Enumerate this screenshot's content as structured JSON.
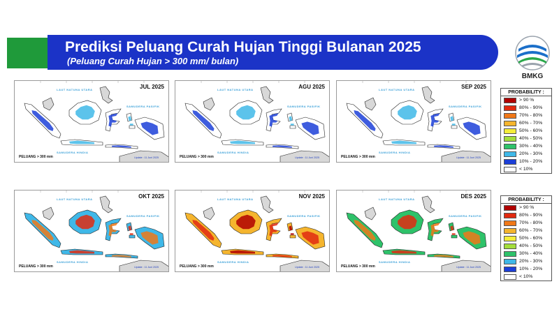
{
  "header": {
    "title": "Prediksi Peluang Curah Hujan Tinggi Bulanan 2025",
    "subtitle": "(Peluang Curah Hujan > 300 mm/ bulan)"
  },
  "logo": {
    "text": "BMKG",
    "colors": {
      "blue": "#1b6fc9",
      "green": "#2aa84a",
      "grey": "#9aa3ad"
    }
  },
  "maps": [
    {
      "month": "JUL 2025",
      "peluang": "PELUANG > 300 mm",
      "update": "Update : 11 Juni 2025"
    },
    {
      "month": "AGU 2025",
      "peluang": "PELUANG > 300 mm",
      "update": "Update : 11 Juni 2025"
    },
    {
      "month": "SEP 2025",
      "peluang": "PELUANG > 300 mm",
      "update": "Update : 11 Juni 2025"
    },
    {
      "month": "OKT 2025",
      "peluang": "PELUANG > 300 mm",
      "update": "Update : 11 Juni 2025"
    },
    {
      "month": "NOV 2025",
      "peluang": "PELUANG > 300 mm",
      "update": "Update : 11 Juni 2025"
    },
    {
      "month": "DES 2025",
      "peluang": "PELUANG > 300 mm",
      "update": "Update : 11 Juni 2025"
    }
  ],
  "sea_labels": {
    "natuna": "LAUT NATUNA UTARA",
    "pasifik": "SAMUDERA PASIFIK",
    "hindia": "SAMUDERA HINDIA"
  },
  "legend": {
    "title": "PROBABILITY :",
    "items": [
      {
        "label": "> 90 %",
        "color": "#b00000"
      },
      {
        "label": "80% - 90%",
        "color": "#e12a10"
      },
      {
        "label": "70% - 80%",
        "color": "#f07818"
      },
      {
        "label": "60% - 70%",
        "color": "#f5b52e"
      },
      {
        "label": "50% - 60%",
        "color": "#f5ee3a"
      },
      {
        "label": "40% - 50%",
        "color": "#a4de3c"
      },
      {
        "label": "30% - 40%",
        "color": "#2ec26a"
      },
      {
        "label": "20% - 30%",
        "color": "#3fb8e8"
      },
      {
        "label": "10% - 20%",
        "color": "#1c3fd8"
      },
      {
        "label": "< 10%",
        "color": "#ffffff"
      }
    ]
  }
}
